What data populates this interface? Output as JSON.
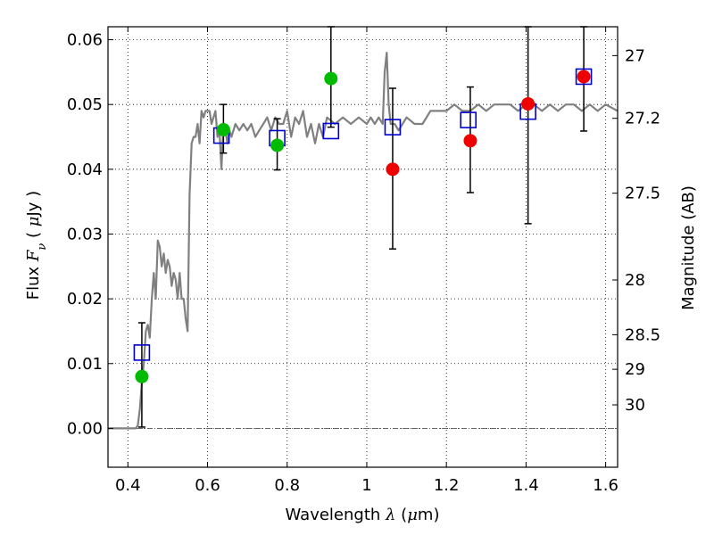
{
  "chart_data": {
    "type": "scatter",
    "xlabel": {
      "prefix": "Wavelength  ",
      "symbol": "λ",
      "mid": " (",
      "unit_mu": "μ",
      "unit_rest": "m)"
    },
    "ylabel": {
      "prefix": "Flux  ",
      "symbol": "F",
      "sub": "ν",
      "mid": "  ( ",
      "unit_mu": "μ",
      "unit_rest": "Jy )"
    },
    "y2label": "Magnitude (AB)",
    "xlim": [
      0.35,
      1.63
    ],
    "ylim": [
      -0.006,
      0.062
    ],
    "grid": true,
    "x_ticks": [
      {
        "v": 0.4,
        "label": "0.4"
      },
      {
        "v": 0.6,
        "label": "0.6"
      },
      {
        "v": 0.8,
        "label": "0.8"
      },
      {
        "v": 1.0,
        "label": "1"
      },
      {
        "v": 1.2,
        "label": "1.2"
      },
      {
        "v": 1.4,
        "label": "1.4"
      },
      {
        "v": 1.6,
        "label": "1.6"
      }
    ],
    "y_ticks": [
      {
        "v": 0.0,
        "label": "0.00"
      },
      {
        "v": 0.01,
        "label": "0.01"
      },
      {
        "v": 0.02,
        "label": "0.02"
      },
      {
        "v": 0.03,
        "label": "0.03"
      },
      {
        "v": 0.04,
        "label": "0.04"
      },
      {
        "v": 0.05,
        "label": "0.05"
      },
      {
        "v": 0.06,
        "label": "0.06"
      }
    ],
    "y2_ticks": [
      {
        "mag": 27,
        "label": "27"
      },
      {
        "mag": 27.2,
        "label": "27.2"
      },
      {
        "mag": 27.5,
        "label": "27.5"
      },
      {
        "mag": 28,
        "label": "28"
      },
      {
        "mag": 28.5,
        "label": "28.5"
      },
      {
        "mag": 29,
        "label": "29"
      },
      {
        "mag": 30,
        "label": "30"
      }
    ],
    "colors": {
      "model": "#808080",
      "model_squares": "#0000cc",
      "green_points": "#00bb00",
      "red_points": "#ee0000",
      "errorbars": "#000000",
      "zero_line": "#555555"
    },
    "model_sed": {
      "x": [
        0.35,
        0.405,
        0.41,
        0.42,
        0.425,
        0.43,
        0.435,
        0.44,
        0.445,
        0.45,
        0.455,
        0.46,
        0.465,
        0.47,
        0.475,
        0.48,
        0.485,
        0.49,
        0.495,
        0.5,
        0.505,
        0.51,
        0.515,
        0.52,
        0.525,
        0.53,
        0.535,
        0.54,
        0.545,
        0.55,
        0.555,
        0.56,
        0.565,
        0.57,
        0.575,
        0.58,
        0.585,
        0.59,
        0.595,
        0.6,
        0.605,
        0.61,
        0.615,
        0.62,
        0.625,
        0.63,
        0.635,
        0.64,
        0.645,
        0.65,
        0.655,
        0.66,
        0.67,
        0.68,
        0.69,
        0.7,
        0.71,
        0.72,
        0.73,
        0.74,
        0.75,
        0.76,
        0.77,
        0.78,
        0.79,
        0.8,
        0.81,
        0.82,
        0.83,
        0.84,
        0.85,
        0.86,
        0.87,
        0.88,
        0.89,
        0.9,
        0.92,
        0.94,
        0.96,
        0.98,
        1.0,
        1.01,
        1.02,
        1.03,
        1.04,
        1.045,
        1.05,
        1.055,
        1.06,
        1.07,
        1.08,
        1.1,
        1.12,
        1.14,
        1.16,
        1.18,
        1.2,
        1.22,
        1.24,
        1.26,
        1.28,
        1.3,
        1.32,
        1.34,
        1.36,
        1.38,
        1.4,
        1.42,
        1.44,
        1.46,
        1.48,
        1.5,
        1.52,
        1.54,
        1.56,
        1.58,
        1.6,
        1.63
      ],
      "y": [
        0.0,
        0.0,
        0.0,
        0.0,
        0.0005,
        0.003,
        0.007,
        0.01,
        0.015,
        0.016,
        0.014,
        0.02,
        0.024,
        0.02,
        0.029,
        0.028,
        0.025,
        0.027,
        0.024,
        0.026,
        0.025,
        0.022,
        0.024,
        0.023,
        0.02,
        0.024,
        0.02,
        0.02,
        0.017,
        0.015,
        0.036,
        0.044,
        0.045,
        0.045,
        0.047,
        0.044,
        0.049,
        0.048,
        0.049,
        0.049,
        0.049,
        0.047,
        0.048,
        0.049,
        0.045,
        0.046,
        0.04,
        0.047,
        0.046,
        0.044,
        0.046,
        0.045,
        0.047,
        0.046,
        0.047,
        0.046,
        0.047,
        0.045,
        0.046,
        0.047,
        0.048,
        0.046,
        0.048,
        0.047,
        0.047,
        0.049,
        0.045,
        0.048,
        0.047,
        0.049,
        0.045,
        0.047,
        0.044,
        0.047,
        0.045,
        0.048,
        0.047,
        0.048,
        0.047,
        0.048,
        0.047,
        0.048,
        0.047,
        0.048,
        0.047,
        0.055,
        0.058,
        0.05,
        0.047,
        0.047,
        0.046,
        0.048,
        0.047,
        0.047,
        0.049,
        0.049,
        0.049,
        0.05,
        0.049,
        0.049,
        0.05,
        0.049,
        0.05,
        0.05,
        0.05,
        0.049,
        0.05,
        0.05,
        0.049,
        0.05,
        0.049,
        0.05,
        0.05,
        0.049,
        0.05,
        0.049,
        0.05,
        0.049
      ]
    },
    "model_points": [
      {
        "x": 0.435,
        "y": 0.0117
      },
      {
        "x": 0.635,
        "y": 0.0452
      },
      {
        "x": 0.775,
        "y": 0.0448
      },
      {
        "x": 0.91,
        "y": 0.0459
      },
      {
        "x": 1.065,
        "y": 0.0465
      },
      {
        "x": 1.255,
        "y": 0.0476
      },
      {
        "x": 1.405,
        "y": 0.0489
      },
      {
        "x": 1.545,
        "y": 0.0543
      }
    ],
    "green_points": [
      {
        "x": 0.435,
        "y": 0.008,
        "err_lo": 0.0002,
        "err_hi": 0.0163
      },
      {
        "x": 0.64,
        "y": 0.0461,
        "err_lo": 0.0425,
        "err_hi": 0.05
      },
      {
        "x": 0.775,
        "y": 0.0437,
        "err_lo": 0.0399,
        "err_hi": 0.0478
      },
      {
        "x": 0.91,
        "y": 0.054,
        "err_lo": 0.0465,
        "err_hi": 0.062
      }
    ],
    "red_points": [
      {
        "x": 1.065,
        "y": 0.04,
        "err_lo": 0.0277,
        "err_hi": 0.0525
      },
      {
        "x": 1.26,
        "y": 0.0444,
        "err_lo": 0.0364,
        "err_hi": 0.0527
      },
      {
        "x": 1.405,
        "y": 0.0501,
        "err_lo": 0.0316,
        "err_hi": 0.062
      },
      {
        "x": 1.545,
        "y": 0.0543,
        "err_lo": 0.0459,
        "err_hi": 0.062
      }
    ]
  }
}
